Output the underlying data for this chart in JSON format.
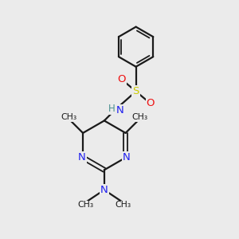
{
  "background_color": "#ebebeb",
  "bond_color": "#1a1a1a",
  "N_color": "#2020ee",
  "O_color": "#ee1111",
  "S_color": "#cccc00",
  "H_color": "#4a9090",
  "figsize": [
    3.0,
    3.0
  ],
  "dpi": 100,
  "xlim": [
    0,
    10
  ],
  "ylim": [
    0,
    10
  ]
}
